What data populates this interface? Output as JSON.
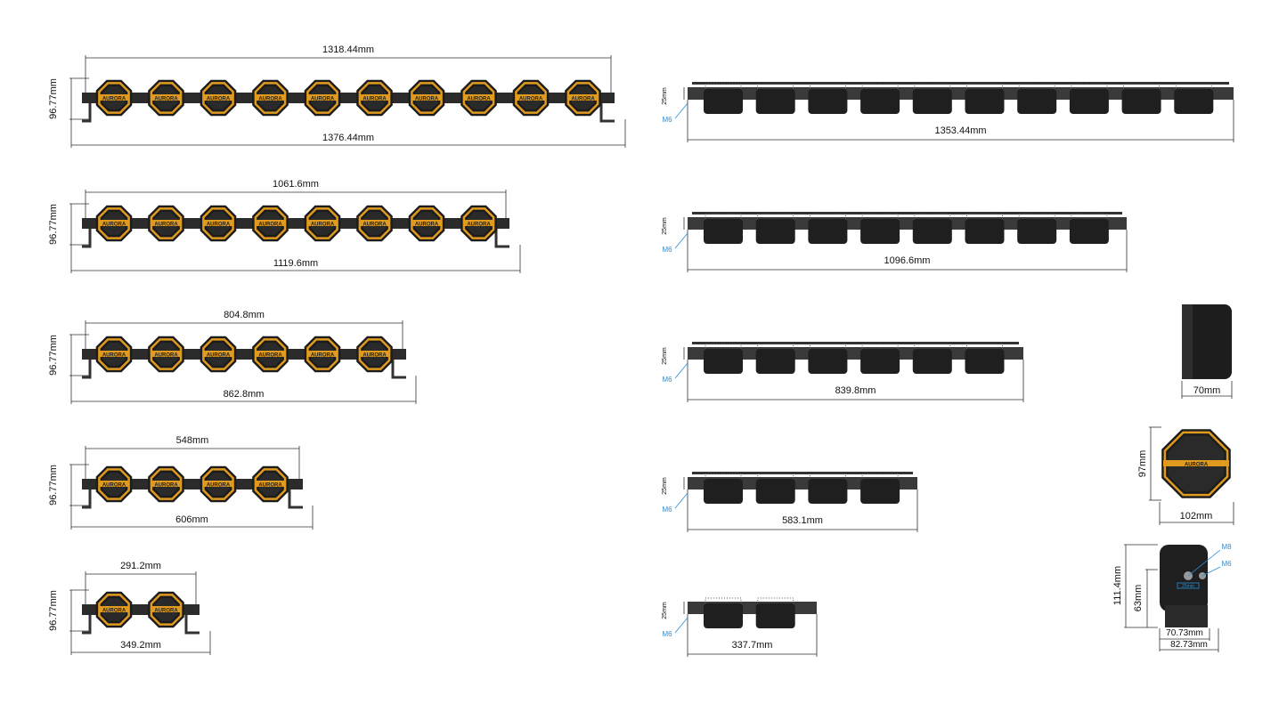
{
  "brand": "AURORA",
  "front_views": [
    {
      "top_width": "1318.44mm",
      "bottom_width": "1376.44mm",
      "height": "96.77mm"
    },
    {
      "top_width": "1061.6mm",
      "bottom_width": "1119.6mm",
      "height": "96.77mm"
    },
    {
      "top_width": "804.8mm",
      "bottom_width": "862.8mm",
      "height": "96.77mm"
    },
    {
      "top_width": "548mm",
      "bottom_width": "606mm",
      "height": "96.77mm"
    },
    {
      "top_width": "291.2mm",
      "bottom_width": "349.2mm",
      "height": "96.77mm"
    }
  ],
  "top_views": [
    {
      "width": "1353.44mm",
      "thread_height": "25mm",
      "thread": "M6"
    },
    {
      "width": "1096.6mm",
      "thread_height": "25mm",
      "thread": "M6"
    },
    {
      "width": "839.8mm",
      "thread_height": "25mm",
      "thread": "M6"
    },
    {
      "width": "583.1mm",
      "thread_height": "25mm",
      "thread": "M6"
    },
    {
      "width": "337.7mm",
      "thread_height": "25mm",
      "thread": "M6"
    }
  ],
  "single_lamp": {
    "side_depth": "70mm",
    "front_height": "97mm",
    "front_width": "102mm",
    "bracket_height": "111.4mm",
    "bracket_mount_height": "63mm",
    "bracket_inner_width": "70.73mm",
    "bracket_outer_width": "82.73mm",
    "bolt_large": "M8",
    "bolt_small": "M6",
    "slot_label": "25mm"
  }
}
